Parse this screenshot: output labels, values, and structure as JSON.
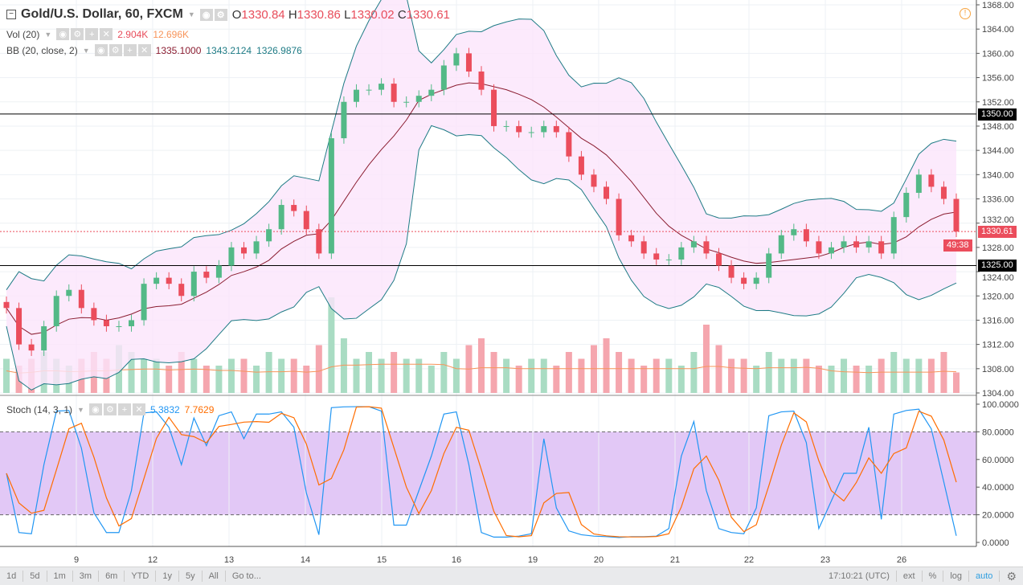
{
  "header": {
    "symbol": "Gold/U.S. Dollar, 60, FXCM",
    "o_label": "O",
    "o": "1330.84",
    "h_label": "H",
    "h": "1330.86",
    "l_label": "L",
    "l": "1330.02",
    "c_label": "C",
    "c": "1330.61"
  },
  "indicators": {
    "vol": {
      "label": "Vol (20)",
      "value": "2.904K",
      "ma": "12.696K"
    },
    "bb": {
      "label": "BB (20, close, 2)",
      "basis": "1335.1000",
      "upper": "1343.2124",
      "lower": "1326.9876"
    },
    "stoch": {
      "label": "Stoch (14, 3, 1)",
      "k": "5.3832",
      "d": "7.7629"
    }
  },
  "price_labels": {
    "last": "1330.61",
    "countdown": "49:38",
    "line1350": "1350.00",
    "line1325": "1325.00"
  },
  "toolbar": {
    "ranges": [
      "1d",
      "5d",
      "1m",
      "3m",
      "6m",
      "YTD",
      "1y",
      "5y",
      "All",
      "Go to..."
    ],
    "time": "17:10:21 (UTC)",
    "ext": "ext",
    "percent": "%",
    "log": "log",
    "auto": "auto"
  },
  "colors": {
    "up": "#53b987",
    "down": "#eb4d5c",
    "bb_band": "#1e7b85",
    "bb_basis": "#8b1d31",
    "bb_fill": "#fbe5fb",
    "stoch_bg": "#e2c8f6",
    "stoch_k": "#2196f3",
    "stoch_d": "#ff6d00"
  },
  "chart_data": {
    "type": "candlestick",
    "title": "Gold/U.S. Dollar, 60, FXCM",
    "x_ticks": [
      "9",
      "12",
      "13",
      "14",
      "15",
      "16",
      "19",
      "20",
      "21",
      "22",
      "23",
      "26"
    ],
    "y_ticks": [
      1304,
      1308,
      1312,
      1316,
      1320,
      1324,
      1328,
      1332,
      1336,
      1340,
      1344,
      1348,
      1352,
      1356,
      1360,
      1364,
      1368
    ],
    "ylim": [
      1304,
      1368
    ],
    "horizontal_lines": [
      1350,
      1325
    ],
    "closes": [
      1318,
      1312,
      1311,
      1315,
      1320,
      1321,
      1318,
      1316,
      1315,
      1315,
      1316,
      1322,
      1323,
      1322,
      1320,
      1324,
      1323,
      1325,
      1328,
      1327,
      1329,
      1331,
      1335,
      1334,
      1331,
      1327,
      1346,
      1352,
      1354,
      1354,
      1355,
      1352,
      1352,
      1353,
      1354,
      1358,
      1360,
      1357,
      1354,
      1348,
      1348,
      1347,
      1347,
      1348,
      1347,
      1343,
      1340,
      1338,
      1336,
      1330,
      1329,
      1327,
      1326,
      1326,
      1328,
      1329,
      1327,
      1325,
      1323,
      1322,
      1323,
      1327,
      1330,
      1331,
      1329,
      1327,
      1328,
      1329,
      1328,
      1329,
      1327,
      1333,
      1337,
      1340,
      1338,
      1336,
      1330.61
    ],
    "volumes_k": [
      5,
      4,
      5,
      6,
      5,
      4,
      5,
      6,
      5,
      7,
      6,
      5,
      5,
      4,
      6,
      5,
      4,
      4,
      5,
      5,
      4,
      6,
      5,
      5,
      4,
      7,
      14,
      8,
      5,
      6,
      5,
      6,
      5,
      5,
      4,
      6,
      5,
      7,
      8,
      6,
      5,
      4,
      5,
      5,
      4,
      6,
      5,
      7,
      8,
      6,
      5,
      4,
      5,
      5,
      4,
      6,
      10,
      7,
      5,
      5,
      4,
      6,
      5,
      5,
      5,
      4,
      4,
      5,
      4,
      4,
      5,
      6,
      5,
      5,
      5,
      6,
      3
    ],
    "stoch_ylim": [
      0,
      100
    ],
    "stoch_levels": [
      20,
      80
    ],
    "stoch_ticks": [
      "0.0000",
      "20.0000",
      "40.0000",
      "60.0000",
      "80.0000",
      "100.0000"
    ]
  }
}
